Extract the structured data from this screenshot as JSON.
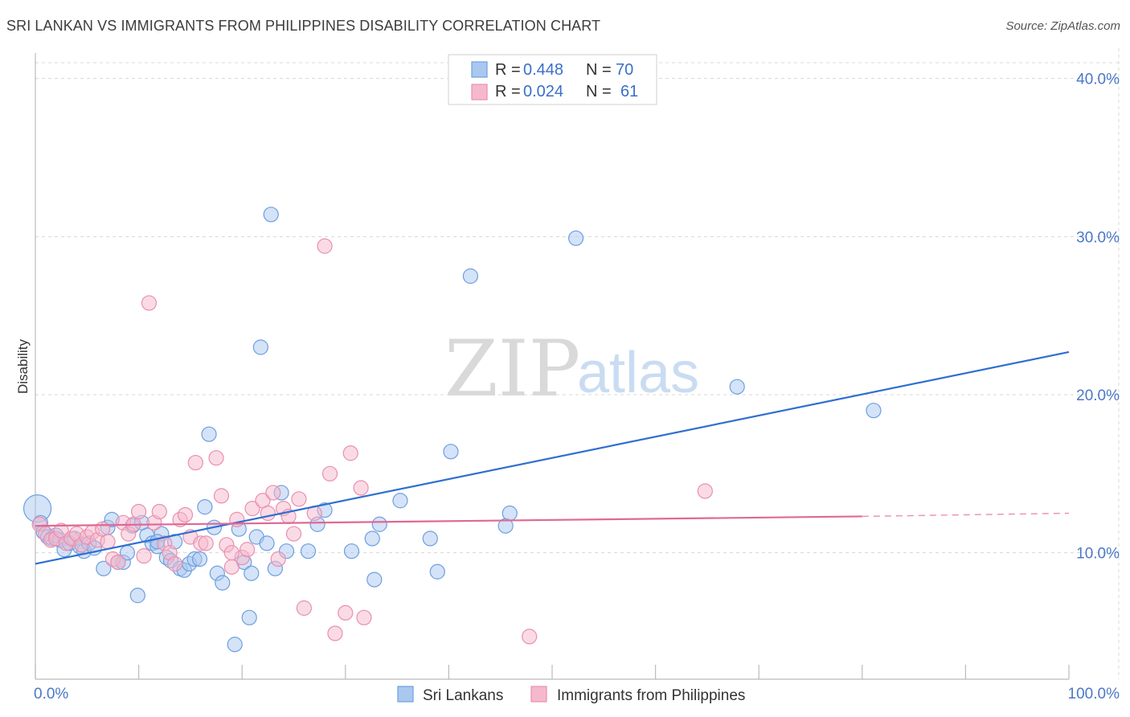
{
  "title": "SRI LANKAN VS IMMIGRANTS FROM PHILIPPINES DISABILITY CORRELATION CHART",
  "source": "Source: ZipAtlas.com",
  "watermark": {
    "zip": "ZIP",
    "atlas": "atlas"
  },
  "legend_top": [
    {
      "r_label": "R = ",
      "r_value": "0.448",
      "n_label": "N = ",
      "n_value": "70"
    },
    {
      "r_label": "R = ",
      "r_value": "0.024",
      "n_label": "N = ",
      "n_value": "61"
    }
  ],
  "colors": {
    "blue_fill": "#a9c8f0",
    "blue_stroke": "#6d9fe0",
    "blue_line": "#2f6fd1",
    "pink_fill": "#f6b8cc",
    "pink_stroke": "#ea8fae",
    "pink_line": "#e06994",
    "grid": "#d8d8d8",
    "axis_text": "#4a78c8"
  },
  "chart_data": {
    "type": "scatter",
    "ylabel": "Disability",
    "xlim": [
      0,
      100
    ],
    "ylim": [
      2,
      41
    ],
    "y_ticks": [
      10,
      20,
      30,
      40
    ],
    "y_tick_labels": [
      "10.0%",
      "20.0%",
      "30.0%",
      "40.0%"
    ],
    "x_tick_labels": [
      "0.0%",
      "100.0%"
    ],
    "grid": true,
    "legend_position": "top-center",
    "series": [
      {
        "name": "Sri Lankans",
        "r": 0.448,
        "n": 70,
        "trend": {
          "x": [
            0,
            100
          ],
          "y": [
            9.3,
            22.7
          ]
        },
        "points": [
          [
            0.2,
            12.8
          ],
          [
            0.5,
            11.9
          ],
          [
            0.8,
            11.3
          ],
          [
            1.2,
            11.0
          ],
          [
            1.6,
            10.9
          ],
          [
            2.0,
            11.1
          ],
          [
            2.4,
            10.8
          ],
          [
            2.8,
            10.2
          ],
          [
            3.3,
            10.6
          ],
          [
            3.8,
            10.9
          ],
          [
            4.3,
            10.4
          ],
          [
            4.7,
            10.1
          ],
          [
            5.2,
            10.6
          ],
          [
            5.7,
            10.3
          ],
          [
            6.6,
            9.0
          ],
          [
            7.0,
            11.6
          ],
          [
            7.4,
            12.1
          ],
          [
            8.0,
            9.4
          ],
          [
            8.5,
            9.4
          ],
          [
            8.9,
            10.0
          ],
          [
            9.4,
            11.7
          ],
          [
            9.9,
            7.3
          ],
          [
            10.3,
            11.9
          ],
          [
            10.8,
            11.1
          ],
          [
            11.3,
            10.6
          ],
          [
            11.8,
            10.4
          ],
          [
            12.2,
            11.2
          ],
          [
            12.7,
            9.7
          ],
          [
            13.1,
            9.5
          ],
          [
            13.5,
            10.7
          ],
          [
            14.0,
            9.0
          ],
          [
            14.4,
            8.9
          ],
          [
            14.9,
            9.3
          ],
          [
            15.4,
            9.6
          ],
          [
            15.9,
            9.6
          ],
          [
            16.4,
            12.9
          ],
          [
            16.8,
            17.5
          ],
          [
            17.3,
            11.6
          ],
          [
            17.6,
            8.7
          ],
          [
            18.1,
            8.1
          ],
          [
            19.3,
            4.2
          ],
          [
            19.7,
            11.5
          ],
          [
            20.2,
            9.4
          ],
          [
            20.7,
            5.9
          ],
          [
            20.9,
            8.7
          ],
          [
            21.4,
            11.0
          ],
          [
            21.8,
            23.0
          ],
          [
            22.8,
            31.4
          ],
          [
            23.2,
            9.0
          ],
          [
            23.8,
            13.8
          ],
          [
            24.3,
            10.1
          ],
          [
            26.4,
            10.1
          ],
          [
            27.3,
            11.8
          ],
          [
            28.0,
            12.7
          ],
          [
            30.6,
            10.1
          ],
          [
            32.8,
            8.3
          ],
          [
            32.6,
            10.9
          ],
          [
            33.3,
            11.8
          ],
          [
            35.3,
            13.3
          ],
          [
            38.2,
            10.9
          ],
          [
            38.9,
            8.8
          ],
          [
            40.2,
            16.4
          ],
          [
            42.1,
            27.5
          ],
          [
            45.5,
            11.7
          ],
          [
            45.9,
            12.5
          ],
          [
            52.3,
            29.9
          ],
          [
            67.9,
            20.5
          ],
          [
            81.1,
            19.0
          ],
          [
            11.8,
            10.7
          ],
          [
            22.4,
            10.6
          ]
        ]
      },
      {
        "name": "Immigrants from Philippines",
        "r": 0.024,
        "n": 61,
        "trend": {
          "x": [
            0,
            80
          ],
          "y": [
            11.7,
            12.3
          ]
        },
        "trend_dashed": {
          "x": [
            80,
            100
          ],
          "y": [
            12.3,
            12.5
          ]
        },
        "points": [
          [
            0.4,
            11.8
          ],
          [
            1.0,
            11.2
          ],
          [
            1.5,
            10.8
          ],
          [
            2.0,
            10.9
          ],
          [
            2.5,
            11.4
          ],
          [
            3.0,
            10.6
          ],
          [
            3.5,
            10.9
          ],
          [
            4.0,
            11.2
          ],
          [
            4.5,
            10.5
          ],
          [
            5.0,
            11.0
          ],
          [
            5.5,
            11.3
          ],
          [
            6.0,
            10.8
          ],
          [
            6.5,
            11.5
          ],
          [
            7.0,
            10.7
          ],
          [
            7.5,
            9.6
          ],
          [
            8.0,
            9.4
          ],
          [
            8.5,
            11.9
          ],
          [
            9.0,
            11.2
          ],
          [
            9.5,
            11.8
          ],
          [
            10.0,
            12.6
          ],
          [
            10.5,
            9.8
          ],
          [
            11.0,
            25.8
          ],
          [
            11.5,
            11.9
          ],
          [
            12.0,
            12.6
          ],
          [
            12.5,
            10.6
          ],
          [
            13.0,
            10.0
          ],
          [
            13.5,
            9.3
          ],
          [
            14.0,
            12.1
          ],
          [
            14.5,
            12.4
          ],
          [
            15.0,
            11.0
          ],
          [
            15.5,
            15.7
          ],
          [
            16.0,
            10.6
          ],
          [
            16.5,
            10.6
          ],
          [
            17.5,
            16.0
          ],
          [
            18.0,
            13.6
          ],
          [
            18.5,
            10.5
          ],
          [
            19.0,
            9.1
          ],
          [
            19.5,
            12.1
          ],
          [
            20.0,
            9.7
          ],
          [
            20.5,
            10.2
          ],
          [
            21.0,
            12.8
          ],
          [
            22.0,
            13.3
          ],
          [
            22.5,
            12.5
          ],
          [
            23.0,
            13.8
          ],
          [
            23.5,
            9.6
          ],
          [
            24.0,
            12.8
          ],
          [
            24.5,
            12.3
          ],
          [
            25.0,
            11.2
          ],
          [
            25.5,
            13.4
          ],
          [
            26.0,
            6.5
          ],
          [
            27.0,
            12.5
          ],
          [
            28.0,
            29.4
          ],
          [
            28.5,
            15.0
          ],
          [
            29.0,
            4.9
          ],
          [
            30.0,
            6.2
          ],
          [
            30.5,
            16.3
          ],
          [
            31.5,
            14.1
          ],
          [
            31.8,
            5.9
          ],
          [
            47.8,
            4.7
          ],
          [
            64.8,
            13.9
          ],
          [
            19.0,
            10.0
          ]
        ]
      }
    ]
  },
  "bottom_legend": [
    {
      "label": "Sri Lankans"
    },
    {
      "label": "Immigrants from Philippines"
    }
  ]
}
